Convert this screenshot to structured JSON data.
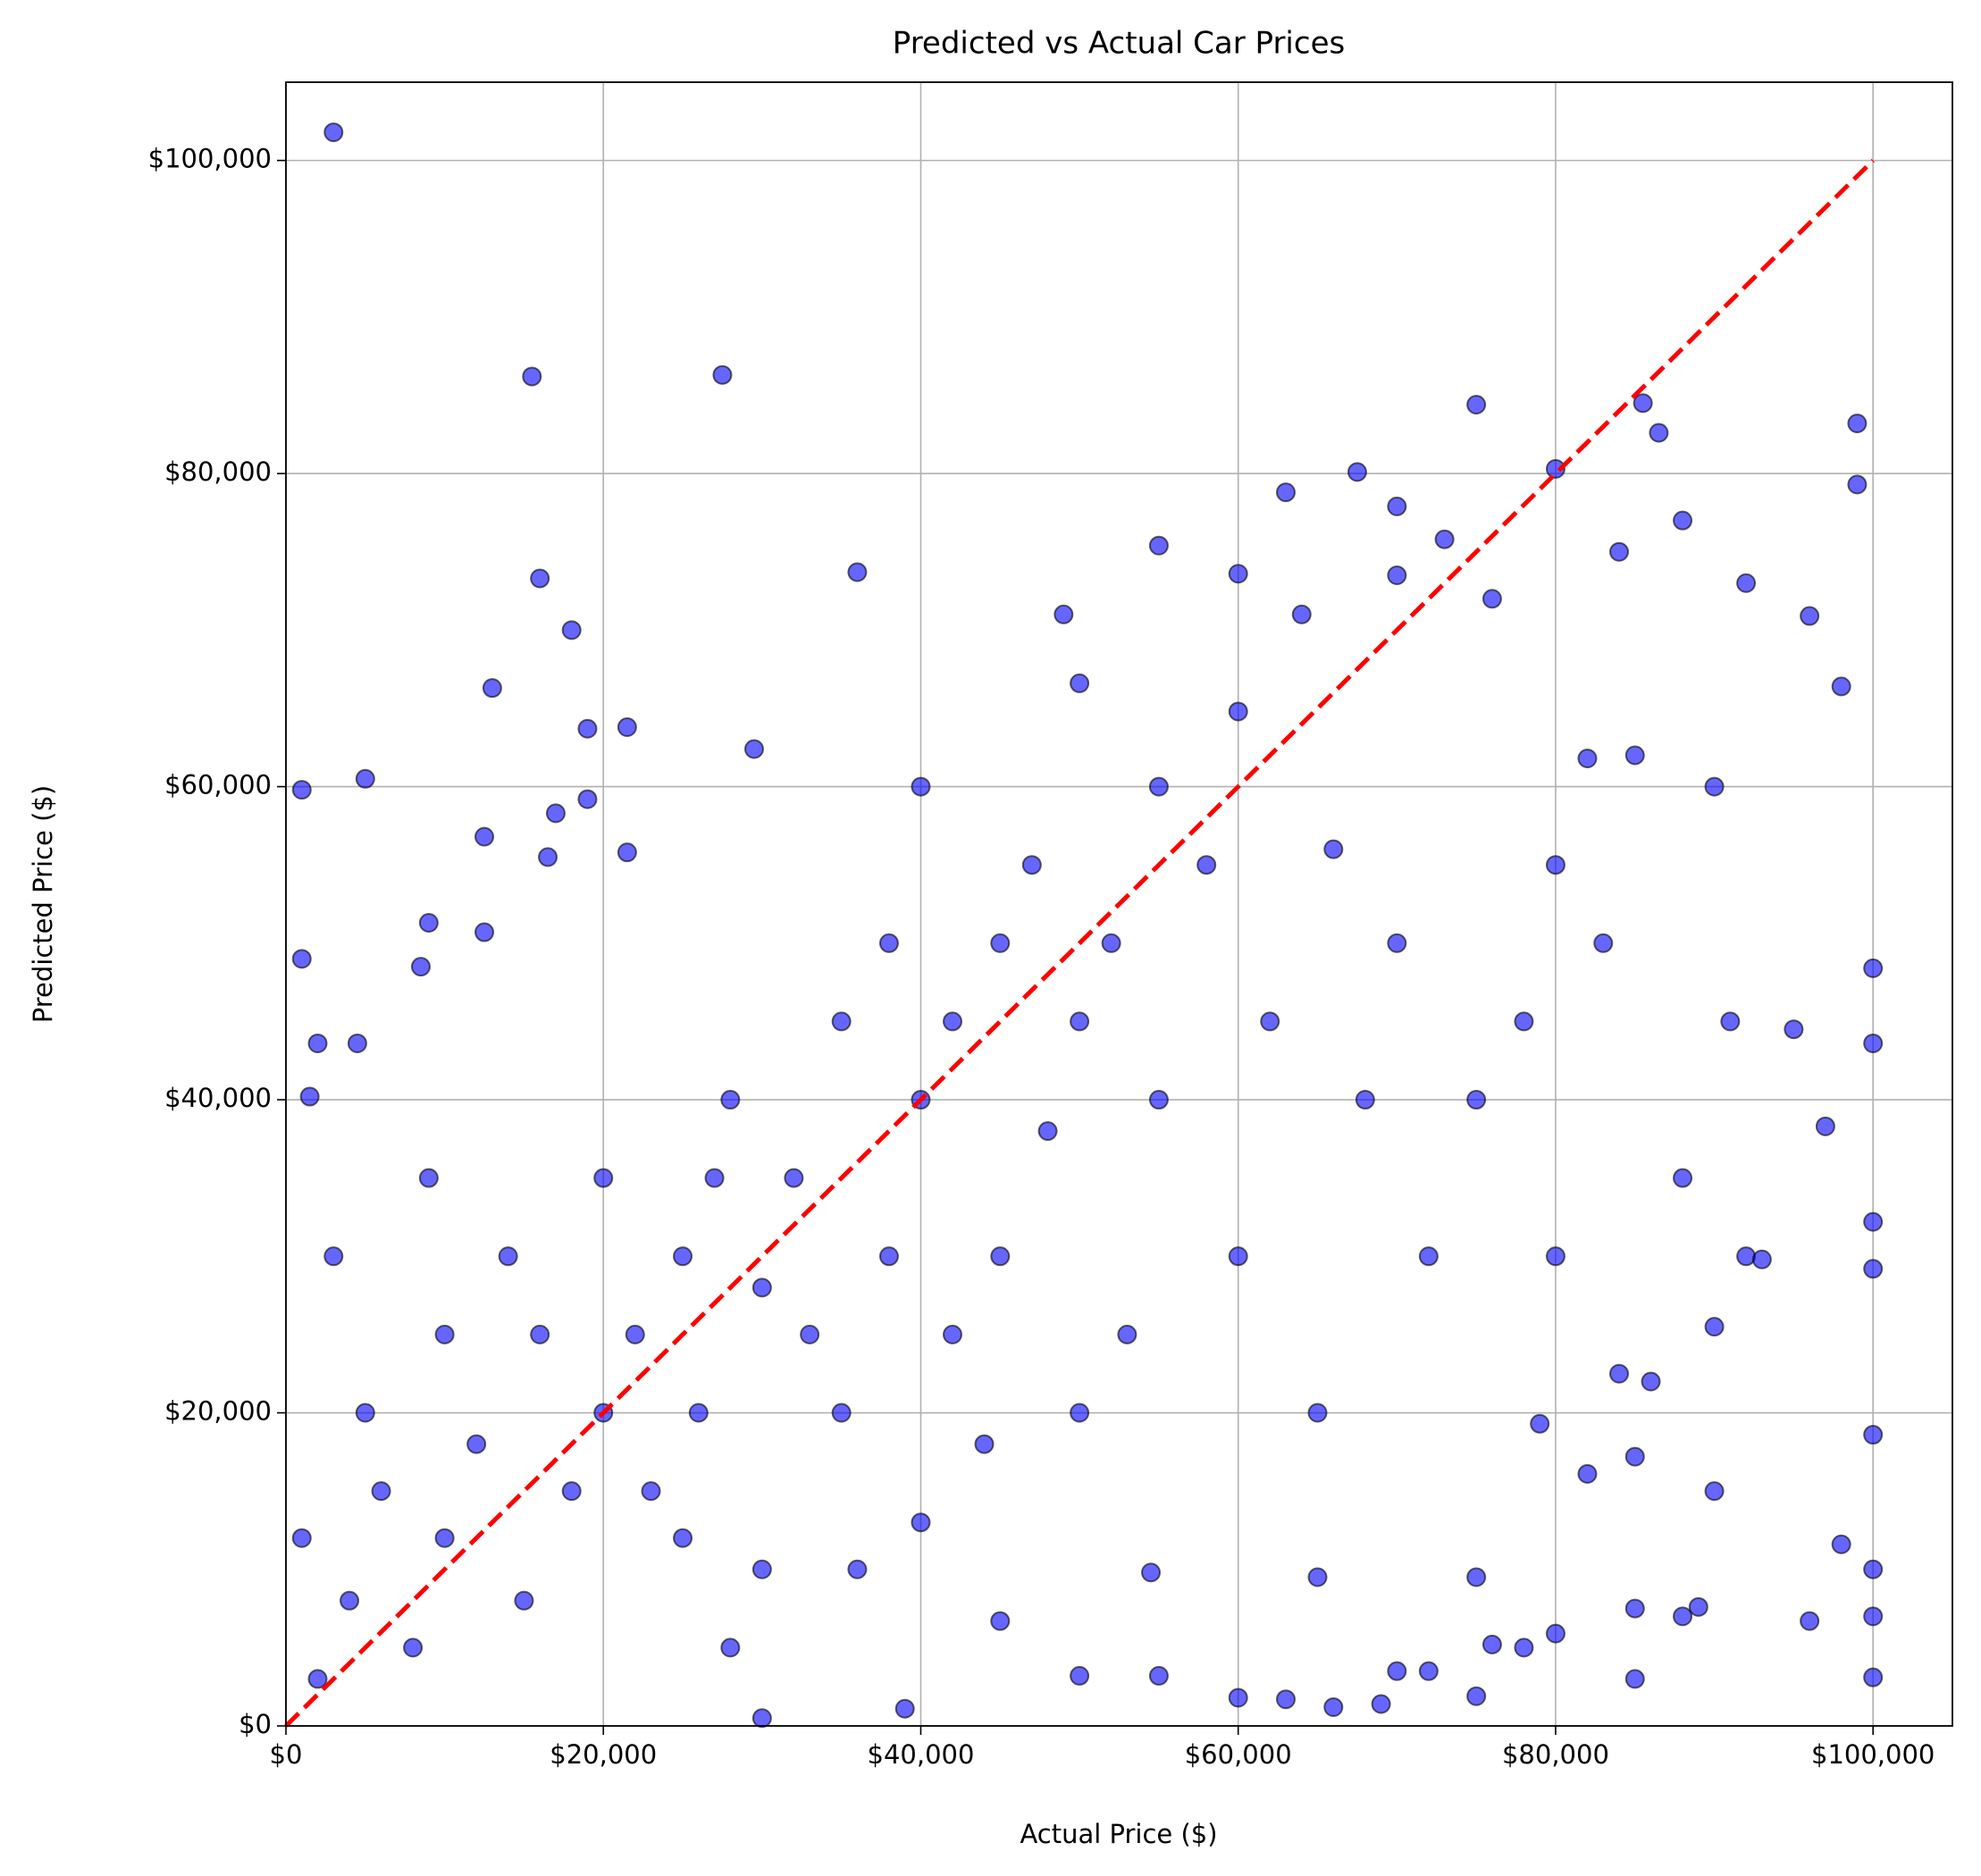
{
  "chart_data": {
    "type": "scatter",
    "title": "Predicted vs Actual Car Prices",
    "x_label": "Actual Price ($)",
    "y_label": "Predicted Price ($)",
    "xlim": [
      0,
      105000
    ],
    "ylim": [
      0,
      105000
    ],
    "xticks": [
      {
        "value": 0,
        "label": "$0"
      },
      {
        "value": 20000,
        "label": "$20,000"
      },
      {
        "value": 40000,
        "label": "$40,000"
      },
      {
        "value": 60000,
        "label": "$60,000"
      },
      {
        "value": 80000,
        "label": "$80,000"
      },
      {
        "value": 100000,
        "label": "$100,000"
      }
    ],
    "yticks": [
      {
        "value": 0,
        "label": "$0"
      },
      {
        "value": 20000,
        "label": "$20,000"
      },
      {
        "value": 40000,
        "label": "$40,000"
      },
      {
        "value": 60000,
        "label": "$60,000"
      },
      {
        "value": 80000,
        "label": "$80,000"
      },
      {
        "value": 100000,
        "label": "$100,000"
      }
    ],
    "grid": true,
    "color": "#0000ff",
    "edge_color": "#000000",
    "alpha": 0.6,
    "x": [
      3000,
      15500,
      27500,
      29500,
      16000,
      36000,
      13000,
      5000,
      1000,
      1000,
      1500,
      2000,
      4500,
      8500,
      9000,
      12500,
      12500,
      16500,
      17000,
      18000,
      19000,
      21500,
      21500,
      19000,
      70000,
      75000,
      85500,
      86500,
      99000,
      99000,
      80000,
      67500,
      63000,
      55000,
      49000,
      50000,
      96000,
      98000,
      97000,
      95000,
      100000,
      100000,
      100000,
      100000,
      100000,
      100000,
      100000,
      100000,
      98000,
      96000,
      90000,
      88000,
      89000,
      85000,
      85000,
      84000,
      85000,
      82000,
      80000,
      78000,
      75000,
      69000,
      66000,
      63000,
      60000,
      55000,
      50000,
      45000,
      39000,
      30000,
      40000,
      54500,
      65000,
      70000,
      72000,
      75000,
      76000,
      79000,
      86000,
      90000,
      92000,
      93000,
      91000,
      90000,
      92000,
      88000,
      84000,
      82000,
      80000,
      76000,
      73000,
      70000,
      66000,
      64000,
      60000,
      60000,
      58000,
      55000,
      52000,
      50000,
      48000,
      45000,
      42000,
      40000,
      40000,
      38000,
      35000,
      35000,
      32000,
      30000,
      28000,
      26000,
      25000,
      22000,
      20000,
      20000,
      18000,
      16000,
      15000,
      12000,
      10000,
      10000,
      8000,
      6000,
      5000,
      4000,
      3000,
      2000,
      1000,
      45000,
      55000,
      60000,
      62000,
      65000,
      68000,
      70000,
      72000,
      75000,
      78000,
      80000,
      83000,
      85000,
      88000,
      42000,
      47000,
      36000,
      30000,
      28000,
      25000,
      50000,
      53000,
      44000,
      38000,
      33000,
      27000,
      23000,
      14000,
      9000
    ],
    "y": [
      101800,
      86200,
      86300,
      62400,
      73300,
      73700,
      66300,
      60500,
      59800,
      49000,
      40200,
      43600,
      43600,
      48500,
      51300,
      50700,
      56800,
      55500,
      58300,
      70000,
      63700,
      63800,
      55800,
      59200,
      77900,
      84400,
      84500,
      82600,
      83200,
      79300,
      80300,
      80100,
      78800,
      75400,
      71000,
      66600,
      70900,
      66400,
      38300,
      44500,
      48400,
      43600,
      32200,
      29200,
      18600,
      10000,
      7000,
      3100,
      11600,
      6700,
      15000,
      7000,
      7600,
      3000,
      7500,
      22500,
      17200,
      16100,
      5900,
      5000,
      1900,
      1400,
      1200,
      1700,
      1800,
      3200,
      3200,
      6700,
      1100,
      500,
      13000,
      9800,
      9500,
      3500,
      3500,
      9500,
      5200,
      19300,
      22000,
      25500,
      30000,
      29800,
      45000,
      60000,
      73000,
      77000,
      75000,
      61800,
      55000,
      72000,
      75800,
      73500,
      56000,
      71000,
      73600,
      64800,
      55000,
      60000,
      50000,
      45000,
      38000,
      50000,
      45000,
      40000,
      60000,
      30000,
      45000,
      20000,
      35000,
      28000,
      40000,
      20000,
      30000,
      25000,
      20000,
      35000,
      15000,
      25000,
      8000,
      18000,
      12000,
      25000,
      5000,
      15000,
      20000,
      8000,
      30000,
      3000,
      12000,
      30000,
      40000,
      30000,
      45000,
      20000,
      40000,
      50000,
      30000,
      40000,
      45000,
      30000,
      50000,
      62000,
      35000,
      25000,
      55000,
      10000,
      10000,
      5000,
      12000,
      20000,
      25000,
      18000,
      50000,
      25000,
      35000,
      15000,
      30000,
      35000
    ],
    "reference_line": {
      "x": [
        0,
        100000
      ],
      "y": [
        0,
        100000
      ],
      "color": "#ff0000"
    }
  }
}
